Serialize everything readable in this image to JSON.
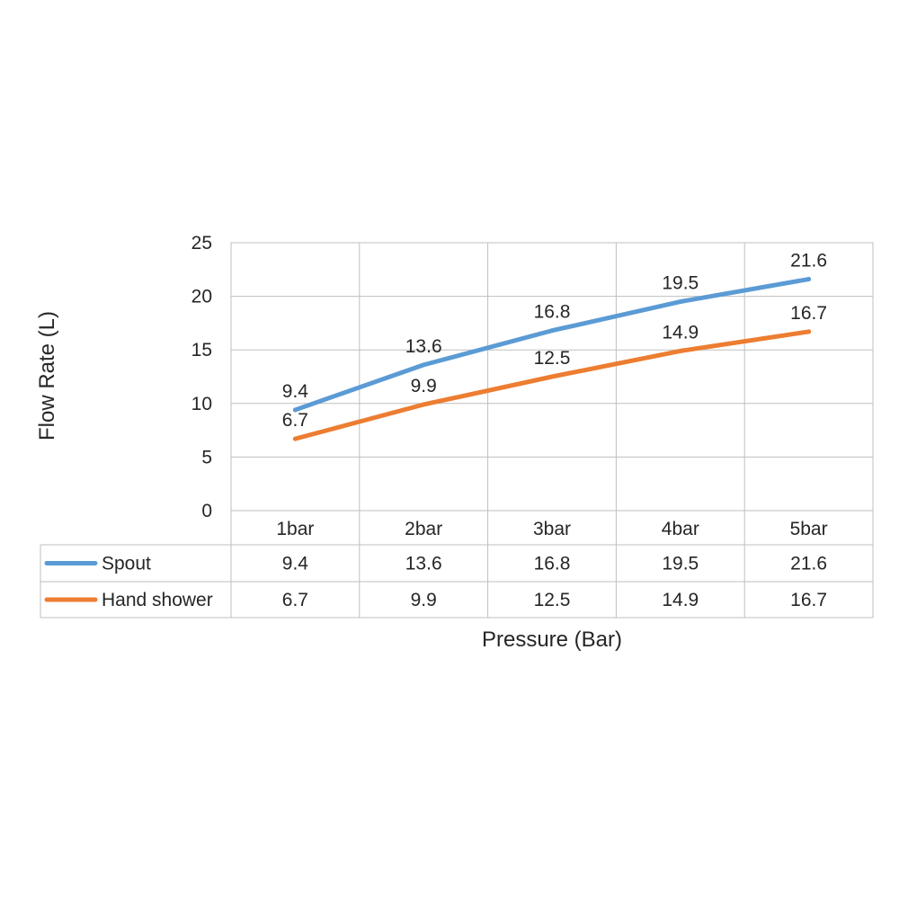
{
  "chart_data": {
    "type": "line",
    "title": "",
    "xlabel": "Pressure (Bar)",
    "ylabel": "Flow Rate (L)",
    "categories": [
      "1bar",
      "2bar",
      "3bar",
      "4bar",
      "5bar"
    ],
    "ylim": [
      0,
      25
    ],
    "yticks": [
      0,
      5,
      10,
      15,
      20,
      25
    ],
    "grid": true,
    "data_labels": true,
    "data_table": true,
    "series": [
      {
        "name": "Spout",
        "color": "#5B9BD5",
        "values": [
          9.4,
          13.6,
          16.8,
          19.5,
          21.6
        ],
        "labels": [
          "9.4",
          "13.6",
          "16.8",
          "19.5",
          "21.6"
        ]
      },
      {
        "name": "Hand shower",
        "color": "#ED7D31",
        "values": [
          6.7,
          9.9,
          12.5,
          14.9,
          16.7
        ],
        "labels": [
          "6.7",
          "9.9",
          "12.5",
          "14.9",
          "16.7"
        ]
      }
    ]
  }
}
